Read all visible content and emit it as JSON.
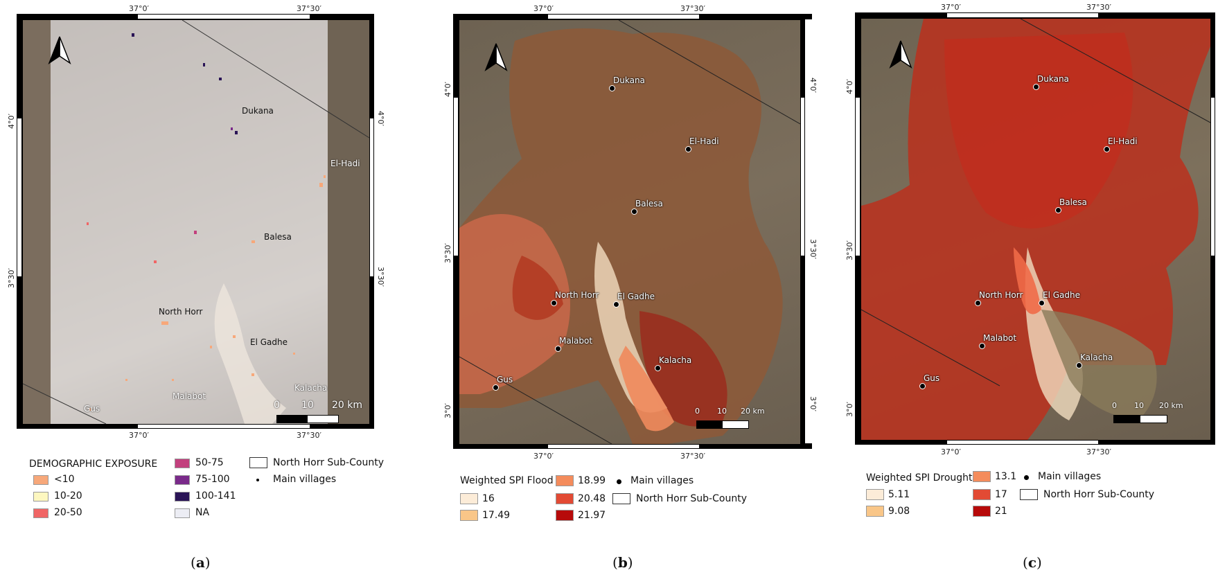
{
  "coords": {
    "top": [
      "37°0′",
      "37°30′"
    ],
    "bottom": [
      "37°0′",
      "37°30′"
    ],
    "left": [
      "4°0′",
      "3°30′"
    ],
    "right": [
      "4°0′",
      "3°30′"
    ],
    "left_c": [
      "4°0′",
      "3°30′",
      "3°0′"
    ],
    "right_c": [
      "4°0′",
      "3°30′",
      "3°0′"
    ]
  },
  "panels": [
    {
      "id": "a",
      "label": "a",
      "villages": [
        "Dukana",
        "El-Hadi",
        "Balesa",
        "North Horr",
        "El Gadhe",
        "Malabot",
        "Kalacha",
        "Gus"
      ],
      "scale": {
        "zero": "0",
        "mid": "10",
        "end": "20 km"
      },
      "legend": {
        "title": "DEMOGRAPHIC EXPOSURE",
        "items": [
          {
            "label": "<10",
            "color": "#f7a87a"
          },
          {
            "label": "10-20",
            "color": "#fdf7c0"
          },
          {
            "label": "20-50",
            "color": "#f06565"
          },
          {
            "label": "50-75",
            "color": "#c2407d"
          },
          {
            "label": "75-100",
            "color": "#7a2a8a"
          },
          {
            "label": "100-141",
            "color": "#2a1456"
          },
          {
            "label": "NA",
            "color": "#ecedf4"
          }
        ],
        "boundary": "North Horr Sub-County",
        "villages": "Main villages"
      }
    },
    {
      "id": "b",
      "label": "b",
      "villages": [
        "Dukana",
        "El-Hadi",
        "Balesa",
        "North Horr",
        "El Gadhe",
        "Malabot",
        "Kalacha",
        "Gus"
      ],
      "scale": {
        "zero": "0",
        "mid": "10",
        "end": "20 km"
      },
      "legend": {
        "title": "Weighted SPI Flood",
        "items": [
          {
            "label": "16",
            "color": "#fcecd8"
          },
          {
            "label": "17.49",
            "color": "#f9c688"
          },
          {
            "label": "18.99",
            "color": "#f48c5c"
          },
          {
            "label": "20.48",
            "color": "#e24a34"
          },
          {
            "label": "21.97",
            "color": "#b70a0a"
          }
        ],
        "villages": "Main villages",
        "boundary": "North Horr Sub-County"
      }
    },
    {
      "id": "c",
      "label": "c",
      "villages": [
        "Dukana",
        "El-Hadi",
        "Balesa",
        "North Horr",
        "El Gadhe",
        "Malabot",
        "Kalacha",
        "Gus"
      ],
      "scale": {
        "zero": "0",
        "mid": "10",
        "end": "20 km"
      },
      "legend": {
        "title": "Weighted SPI Drought",
        "items": [
          {
            "label": "5.11",
            "color": "#fcecd8"
          },
          {
            "label": "9.08",
            "color": "#f9c688"
          },
          {
            "label": "13.1",
            "color": "#f48c5c"
          },
          {
            "label": "17",
            "color": "#e24a34"
          },
          {
            "label": "21",
            "color": "#b70a0a"
          }
        ],
        "villages": "Main villages",
        "boundary": "North Horr Sub-County"
      }
    }
  ]
}
